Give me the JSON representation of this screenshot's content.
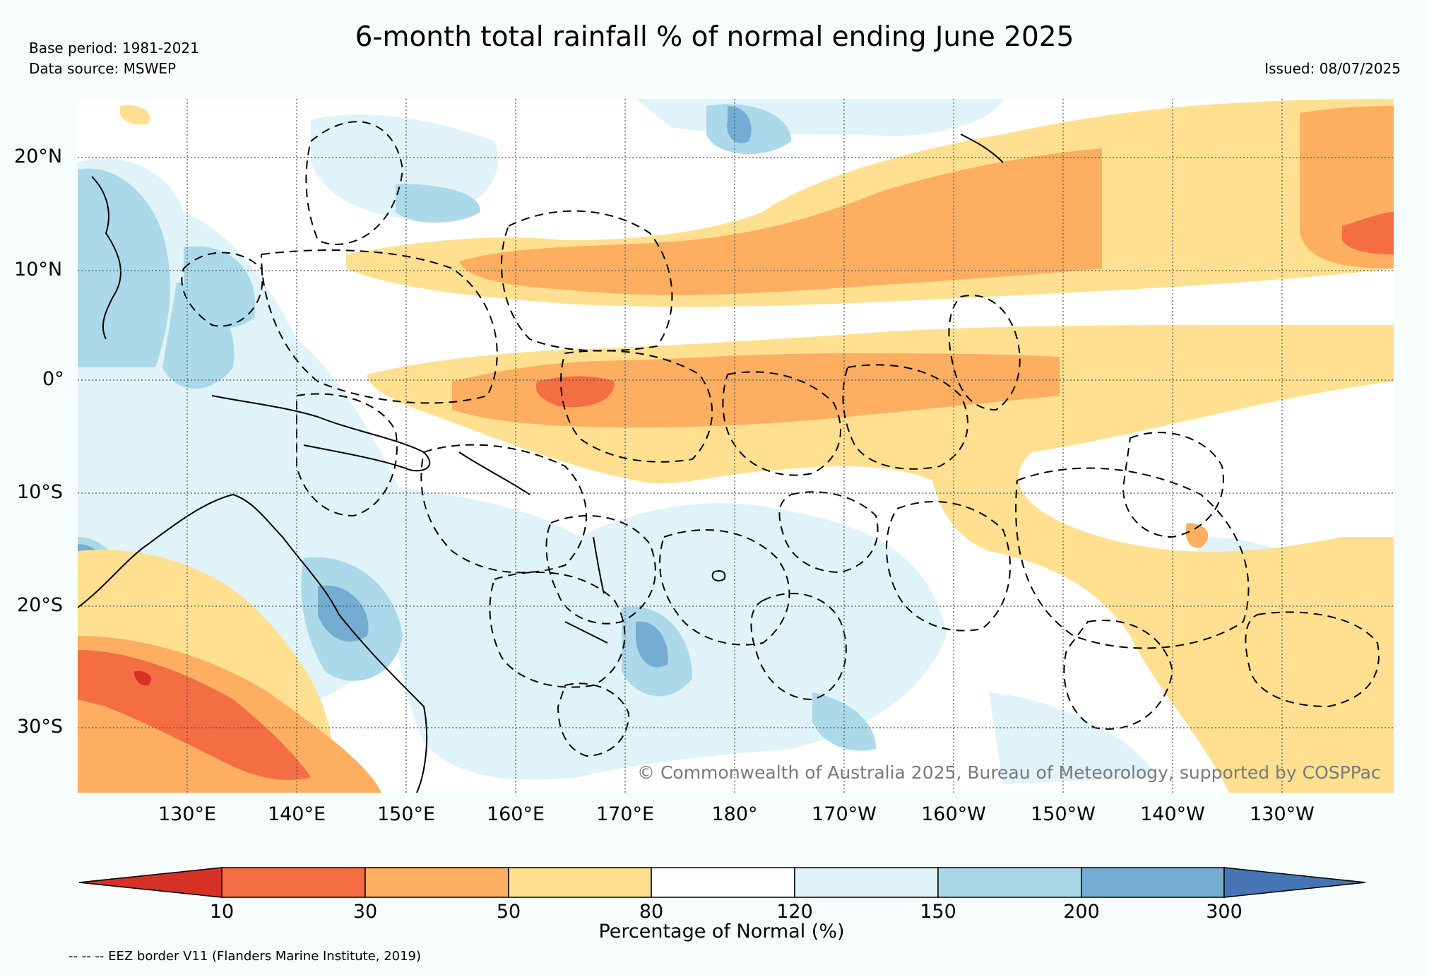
{
  "header": {
    "title": "6-month total rainfall % of normal ending June 2025",
    "base_period": "Base period: 1981-2021",
    "data_source": "Data source: MSWEP",
    "issued": "Issued: 08/07/2025"
  },
  "map": {
    "lat_labels": [
      "20°N",
      "10°N",
      "0°",
      "10°S",
      "20°S",
      "30°S"
    ],
    "lon_labels": [
      "130°E",
      "140°E",
      "150°E",
      "160°E",
      "170°E",
      "180°",
      "170°W",
      "160°W",
      "150°W",
      "140°W",
      "130°W"
    ],
    "copyright": "© Commonwealth of Australia 2025, Bureau of Meteorology, supported by COSPPac",
    "colors": {
      "below_10": "#d73027",
      "10_30": "#f46d43",
      "30_50": "#fdae61",
      "50_80": "#fee090",
      "80_120": "#ffffff",
      "120_150": "#e0f3f8",
      "150_200": "#abd9e9",
      "200_300": "#74add1",
      "above_300": "#4575b4",
      "land_line": "#000000"
    }
  },
  "colorbar": {
    "label": "Percentage of Normal (%)",
    "ticks": [
      "10",
      "30",
      "50",
      "80",
      "120",
      "150",
      "200",
      "300"
    ]
  },
  "footer": {
    "eez_note": "-- -- -- EEZ border V11 (Flanders Marine Institute, 2019)"
  }
}
